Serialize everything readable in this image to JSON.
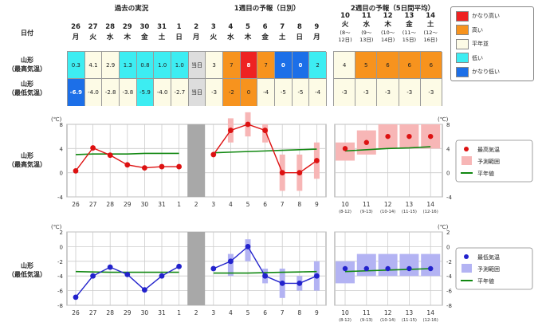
{
  "sections": {
    "past": "過去の実況",
    "week1": "1週目の予報（日別）",
    "week2": "2週目の予報（5日間平均）"
  },
  "date_label": "日付",
  "region": {
    "top": "山形",
    "max_sub": "（最高気温）",
    "min_sub": "（最低気温）"
  },
  "days": [
    {
      "d": "26",
      "w": "月"
    },
    {
      "d": "27",
      "w": "火"
    },
    {
      "d": "28",
      "w": "水"
    },
    {
      "d": "29",
      "w": "木"
    },
    {
      "d": "30",
      "w": "金"
    },
    {
      "d": "31",
      "w": "土"
    },
    {
      "d": "1",
      "w": "日"
    },
    {
      "d": "2",
      "w": "月"
    },
    {
      "d": "3",
      "w": "火"
    },
    {
      "d": "4",
      "w": "水"
    },
    {
      "d": "5",
      "w": "木"
    },
    {
      "d": "6",
      "w": "金"
    },
    {
      "d": "7",
      "w": "土"
    },
    {
      "d": "8",
      "w": "日"
    },
    {
      "d": "9",
      "w": "月"
    }
  ],
  "week2_days": [
    {
      "d": "10",
      "w": "火",
      "r1": "(8〜",
      "r2": "12日)"
    },
    {
      "d": "11",
      "w": "水",
      "r1": "(9〜",
      "r2": "13日)"
    },
    {
      "d": "12",
      "w": "木",
      "r1": "(10〜",
      "r2": "14日)"
    },
    {
      "d": "13",
      "w": "金",
      "r1": "(11〜",
      "r2": "15日)"
    },
    {
      "d": "14",
      "w": "土",
      "r1": "(12〜",
      "r2": "16日)"
    }
  ],
  "today_label": "当日",
  "max_row": [
    "0.3",
    "4.1",
    "2.9",
    "1.3",
    "0.8",
    "1.0",
    "1.0",
    "当日",
    "3",
    "7",
    "8",
    "7",
    "0",
    "0",
    "2"
  ],
  "min_row": [
    "-6.9",
    "-4.0",
    "-2.8",
    "-3.8",
    "-5.9",
    "-4.0",
    "-2.7",
    "当日",
    "-3",
    "-2",
    "0",
    "-4",
    "-5",
    "-5",
    "-4"
  ],
  "w2_max_row": [
    "4",
    "5",
    "6",
    "6",
    "6"
  ],
  "w2_min_row": [
    "-3",
    "-3",
    "-3",
    "-3",
    "-3"
  ],
  "table_legend": [
    {
      "label": "かなり高い",
      "color": "#ee2222"
    },
    {
      "label": "高い",
      "color": "#f7931e"
    },
    {
      "label": "平年並",
      "color": "#fdfbe6"
    },
    {
      "label": "低い",
      "color": "#3dedf2"
    },
    {
      "label": "かなり低い",
      "color": "#1c6fe8"
    }
  ],
  "colors": {
    "vhigh": "#ee2222",
    "high": "#f7931e",
    "normal": "#fdfbe6",
    "low": "#3dedf2",
    "vlow": "#1c6fe8",
    "today": "#dddddd",
    "max_line": "#dd1111",
    "min_line": "#2222cc",
    "normal_line": "#118811",
    "max_band": "#f7b6b6",
    "min_band": "#b3b3f3"
  },
  "cell_class": {
    "max": [
      "low",
      "normal",
      "normal",
      "low",
      "low",
      "low",
      "low",
      "today",
      "normal",
      "high",
      "vhigh",
      "high",
      "vlow",
      "vlow",
      "low"
    ],
    "min": [
      "vlow",
      "normal",
      "normal",
      "normal",
      "low",
      "normal",
      "normal",
      "today",
      "normal",
      "high",
      "high",
      "normal",
      "normal",
      "normal",
      "normal"
    ],
    "w2max": [
      "normal",
      "high",
      "high",
      "high",
      "high"
    ],
    "w2min": [
      "normal",
      "normal",
      "normal",
      "normal",
      "normal"
    ]
  },
  "chart_data": [
    {
      "type": "line",
      "title": "山形（最高気温）",
      "ylabel": "(℃)",
      "ylim": [
        -4,
        8
      ],
      "yticks": [
        -4,
        0,
        4,
        8
      ],
      "x_daily": [
        "26",
        "27",
        "28",
        "29",
        "30",
        "31",
        "1",
        "2",
        "3",
        "4",
        "5",
        "6",
        "7",
        "8",
        "9"
      ],
      "x_week2": [
        "10",
        "11",
        "12",
        "13",
        "14"
      ],
      "x_week2_sub": [
        "(8-12)",
        "(9-13)",
        "(10-14)",
        "(11-15)",
        "(12-16)"
      ],
      "past": [
        0.3,
        4.1,
        2.9,
        1.3,
        0.8,
        1.0,
        1.0
      ],
      "forecast": [
        3,
        7,
        8,
        7,
        0,
        0,
        2
      ],
      "forecast_range": [
        [
          3,
          3
        ],
        [
          5,
          9
        ],
        [
          6,
          10
        ],
        [
          5,
          8
        ],
        [
          -3,
          3
        ],
        [
          -3,
          3
        ],
        [
          -1,
          5
        ]
      ],
      "normal_past": [
        3.0,
        3.1,
        3.1,
        3.1,
        3.2,
        3.2,
        3.2
      ],
      "normal_fc": [
        3.3,
        3.4,
        3.5,
        3.6,
        3.7,
        3.8,
        3.9
      ],
      "week2": [
        4,
        5,
        6,
        6,
        6
      ],
      "week2_range": [
        [
          2,
          5
        ],
        [
          3,
          7
        ],
        [
          4,
          8
        ],
        [
          4,
          8
        ],
        [
          4,
          8
        ]
      ],
      "week2_normal": [
        3.6,
        3.8,
        4.0,
        4.1,
        4.3
      ],
      "legend": [
        "最高気温",
        "予測範囲",
        "平年値"
      ]
    },
    {
      "type": "line",
      "title": "山形（最低気温）",
      "ylabel": "(℃)",
      "ylim": [
        -8,
        2
      ],
      "yticks": [
        -8,
        -6,
        -4,
        -2,
        0,
        2
      ],
      "x_daily": [
        "26",
        "27",
        "28",
        "29",
        "30",
        "31",
        "1",
        "2",
        "3",
        "4",
        "5",
        "6",
        "7",
        "8",
        "9"
      ],
      "x_week2": [
        "10",
        "11",
        "12",
        "13",
        "14"
      ],
      "x_week2_sub": [
        "(8-12)",
        "(9-13)",
        "(10-14)",
        "(11-15)",
        "(12-16)"
      ],
      "past": [
        -6.9,
        -4.0,
        -2.8,
        -3.8,
        -5.9,
        -4.0,
        -2.7
      ],
      "forecast": [
        -3,
        -2,
        0,
        -4,
        -5,
        -5,
        -4
      ],
      "forecast_range": [
        [
          -3,
          -3
        ],
        [
          -4,
          -1
        ],
        [
          -2,
          1
        ],
        [
          -5,
          -3
        ],
        [
          -7,
          -3
        ],
        [
          -6,
          -4
        ],
        [
          -6,
          -2
        ]
      ],
      "normal_past": [
        -3.4,
        -3.45,
        -3.5,
        -3.5,
        -3.5,
        -3.5,
        -3.5
      ],
      "normal_fc": [
        -3.6,
        -3.6,
        -3.6,
        -3.55,
        -3.5,
        -3.45,
        -3.4
      ],
      "week2": [
        -3,
        -3,
        -3,
        -3,
        -3
      ],
      "week2_range": [
        [
          -5,
          -2
        ],
        [
          -4,
          -1
        ],
        [
          -4,
          -1
        ],
        [
          -4,
          -1
        ],
        [
          -4,
          -1
        ]
      ],
      "week2_normal": [
        -3.4,
        -3.3,
        -3.2,
        -3.1,
        -3.0
      ],
      "legend": [
        "最低気温",
        "予測範囲",
        "平年値"
      ]
    }
  ]
}
